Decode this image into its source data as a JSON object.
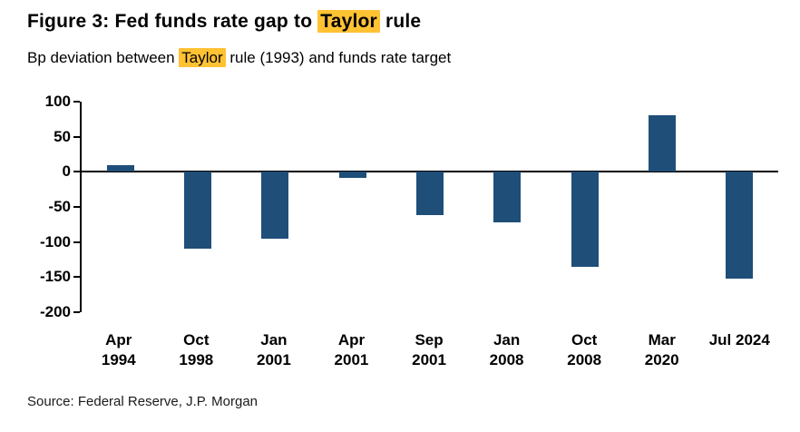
{
  "title": {
    "prefix": "Figure 3: Fed funds rate gap to ",
    "highlight": "Taylor",
    "suffix": " rule"
  },
  "subtitle": {
    "prefix": "Bp deviation between ",
    "highlight": "Taylor",
    "suffix": " rule (1993) and funds rate target"
  },
  "source": "Source: Federal Reserve, J.P. Morgan",
  "colors": {
    "bar": "#1F4E79",
    "highlight": "#FFC233",
    "axis": "#000000"
  },
  "chart_data": {
    "type": "bar",
    "categories": [
      "Apr\n1994",
      "Oct\n1998",
      "Jan\n2001",
      "Apr\n2001",
      "Sep\n2001",
      "Jan\n2008",
      "Oct\n2008",
      "Mar\n2020",
      "Jul 2024"
    ],
    "values": [
      10,
      -110,
      -95,
      -8,
      -62,
      -72,
      -135,
      80,
      -152
    ],
    "title": "Figure 3: Fed funds rate gap to Taylor rule",
    "subtitle": "Bp deviation between Taylor rule (1993) and funds rate target",
    "xlabel": "",
    "ylabel": "",
    "ylim": [
      -200,
      100
    ],
    "yticks": [
      100,
      50,
      0,
      -50,
      -100,
      -150,
      -200
    ],
    "grid": false,
    "legend": null
  }
}
